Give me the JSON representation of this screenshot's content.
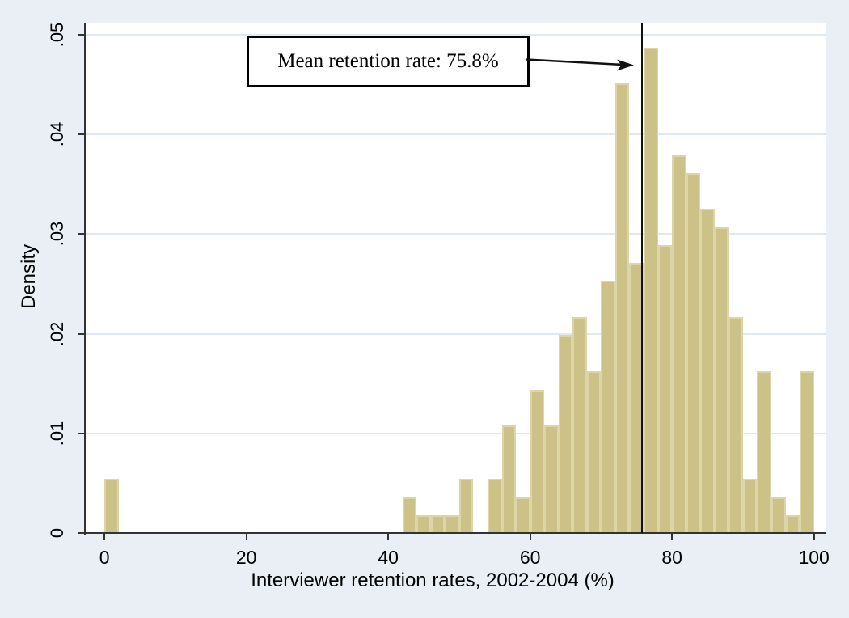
{
  "chart_data": {
    "type": "bar",
    "subtype": "histogram",
    "title": "",
    "xlabel": "Interviewer retention rates, 2002-2004 (%)",
    "ylabel": "Density",
    "x_ticks": [
      0,
      20,
      40,
      60,
      80,
      100
    ],
    "y_ticks": [
      {
        "value": 0,
        "label": "0"
      },
      {
        "value": 0.01,
        "label": ".01"
      },
      {
        "value": 0.02,
        "label": ".02"
      },
      {
        "value": 0.03,
        "label": ".03"
      },
      {
        "value": 0.04,
        "label": ".04"
      },
      {
        "value": 0.05,
        "label": ".05"
      }
    ],
    "xlim": [
      -2.75,
      101.75
    ],
    "ylim": [
      0,
      0.0512
    ],
    "grid": "horizontal",
    "legend": "none",
    "bin_width": 2,
    "bars": [
      {
        "x": 0,
        "density": 0.0054
      },
      {
        "x": 42,
        "density": 0.0036
      },
      {
        "x": 44,
        "density": 0.0018
      },
      {
        "x": 46,
        "density": 0.0018
      },
      {
        "x": 48,
        "density": 0.0018
      },
      {
        "x": 50,
        "density": 0.0054
      },
      {
        "x": 52,
        "density": 0
      },
      {
        "x": 54,
        "density": 0.0054
      },
      {
        "x": 56,
        "density": 0.0108
      },
      {
        "x": 58,
        "density": 0.0036
      },
      {
        "x": 60,
        "density": 0.0144
      },
      {
        "x": 62,
        "density": 0.0108
      },
      {
        "x": 64,
        "density": 0.0199
      },
      {
        "x": 66,
        "density": 0.0217
      },
      {
        "x": 68,
        "density": 0.0162
      },
      {
        "x": 70,
        "density": 0.0253
      },
      {
        "x": 72,
        "density": 0.0451
      },
      {
        "x": 74,
        "density": 0.0271
      },
      {
        "x": 76,
        "density": 0.0487
      },
      {
        "x": 78,
        "density": 0.0289
      },
      {
        "x": 80,
        "density": 0.0379
      },
      {
        "x": 82,
        "density": 0.0361
      },
      {
        "x": 84,
        "density": 0.0325
      },
      {
        "x": 86,
        "density": 0.0307
      },
      {
        "x": 88,
        "density": 0.0217
      },
      {
        "x": 90,
        "density": 0.0054
      },
      {
        "x": 92,
        "density": 0.0162
      },
      {
        "x": 94,
        "density": 0.0036
      },
      {
        "x": 96,
        "density": 0.0018
      },
      {
        "x": 98,
        "density": 0.0162
      }
    ],
    "mean_line_x": 75.8,
    "annotation": {
      "text": "Mean retention rate: 75.8%",
      "points_to_x": 75.8
    }
  },
  "colors": {
    "figure_bg": "#e9eff5",
    "plot_bg": "#ffffff",
    "gridline": "#dfe9f1",
    "bar_fill": "#ccc287",
    "bar_edge": "#dbd5a8",
    "axis": "#333333",
    "text": "#000000",
    "mean_line": "#111111",
    "annotation_bg": "#ffffff",
    "annotation_border": "#000000"
  }
}
